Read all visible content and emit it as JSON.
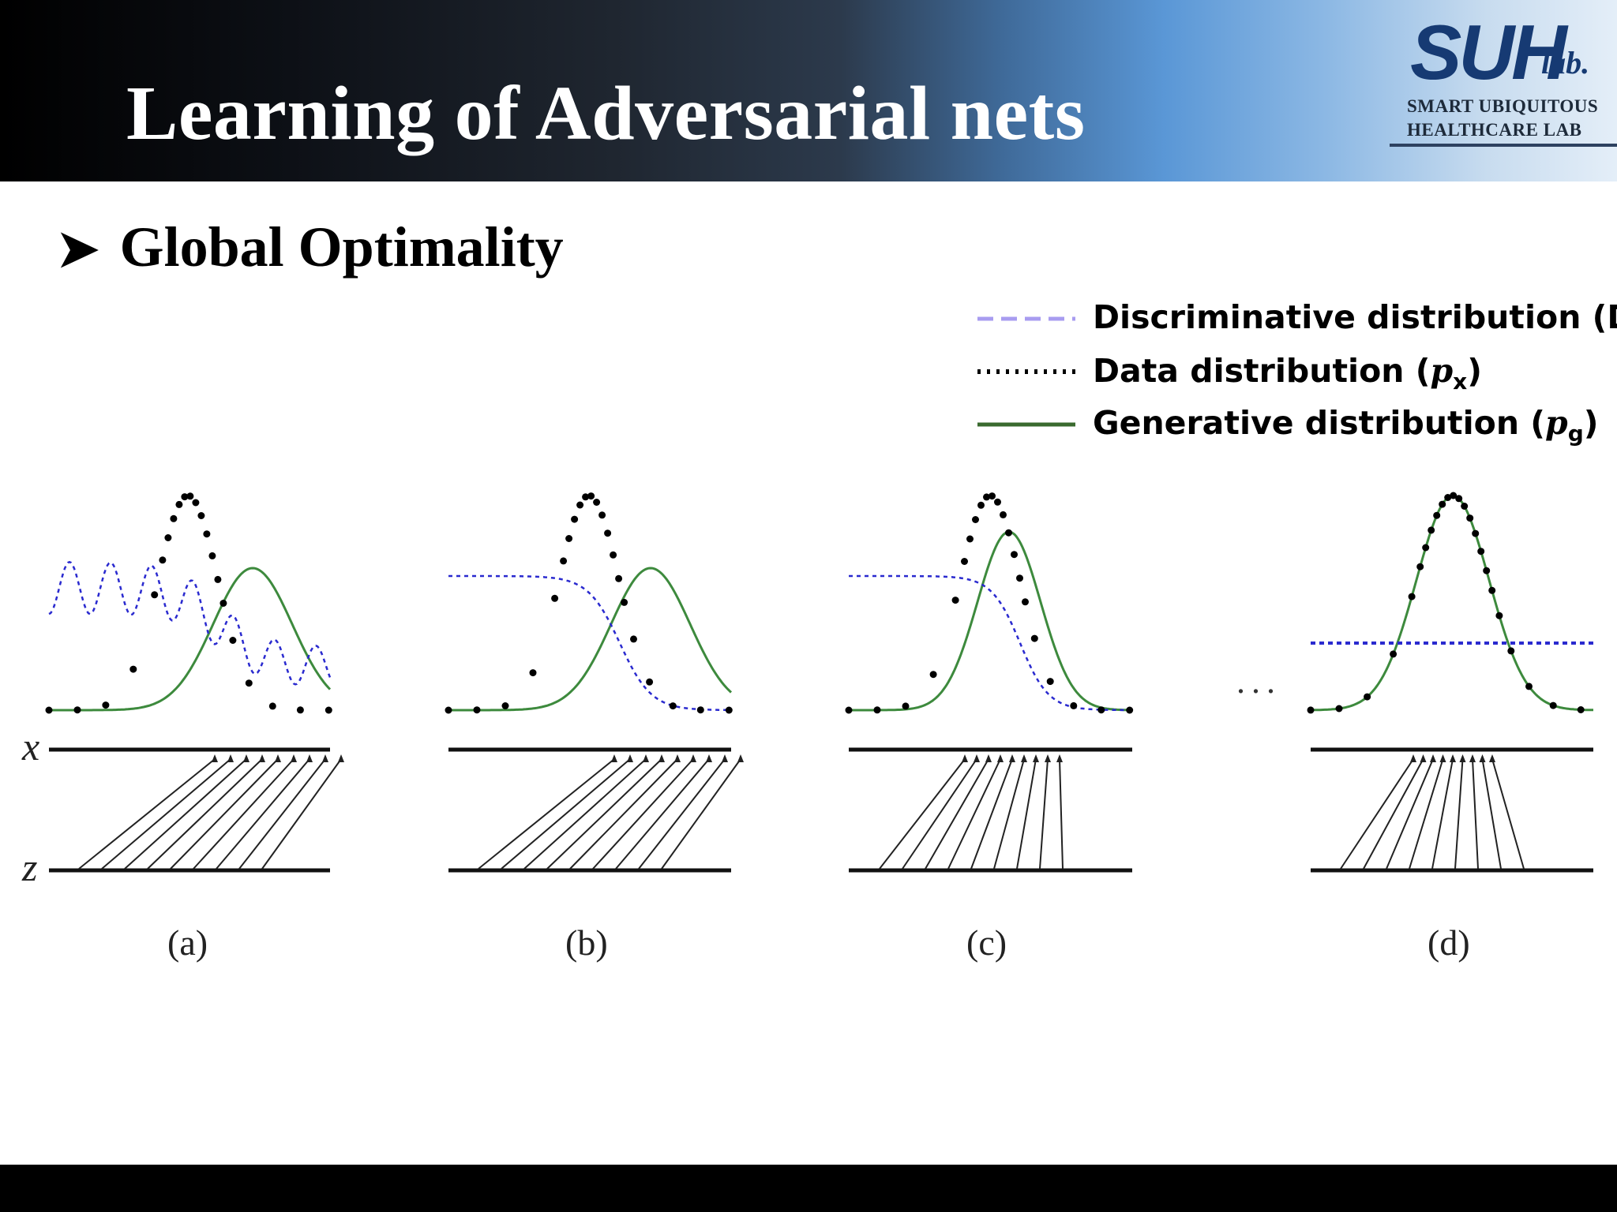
{
  "slide": {
    "title": "Learning of Adversarial nets",
    "bullet": "Global Optimality"
  },
  "logo": {
    "mark": "SUH",
    "lab": "lab.",
    "line1": "SMART UBIQUITOUS",
    "line2": "HEALTHCARE LAB"
  },
  "legend": {
    "discriminative": "Discriminative distribution (D)",
    "data_prefix": "Data distribution (",
    "data_symbol": "p",
    "data_sub": "x",
    "gen_prefix": "Generative distribution (",
    "gen_symbol": "p",
    "gen_sub": "g",
    "close_paren": ")"
  },
  "axes": {
    "x_label": "x",
    "z_label": "z"
  },
  "panels": [
    {
      "label": "(a)"
    },
    {
      "label": "(b)"
    },
    {
      "label": "(c)"
    },
    {
      "label": "(d)"
    }
  ],
  "ellipsis": "...",
  "colors": {
    "discriminative": "#2a2acf",
    "legend_discriminative": "#a89cf0",
    "data": "#000000",
    "generative": "#3d8a3d",
    "legend_generative": "#3a6a2f"
  }
}
